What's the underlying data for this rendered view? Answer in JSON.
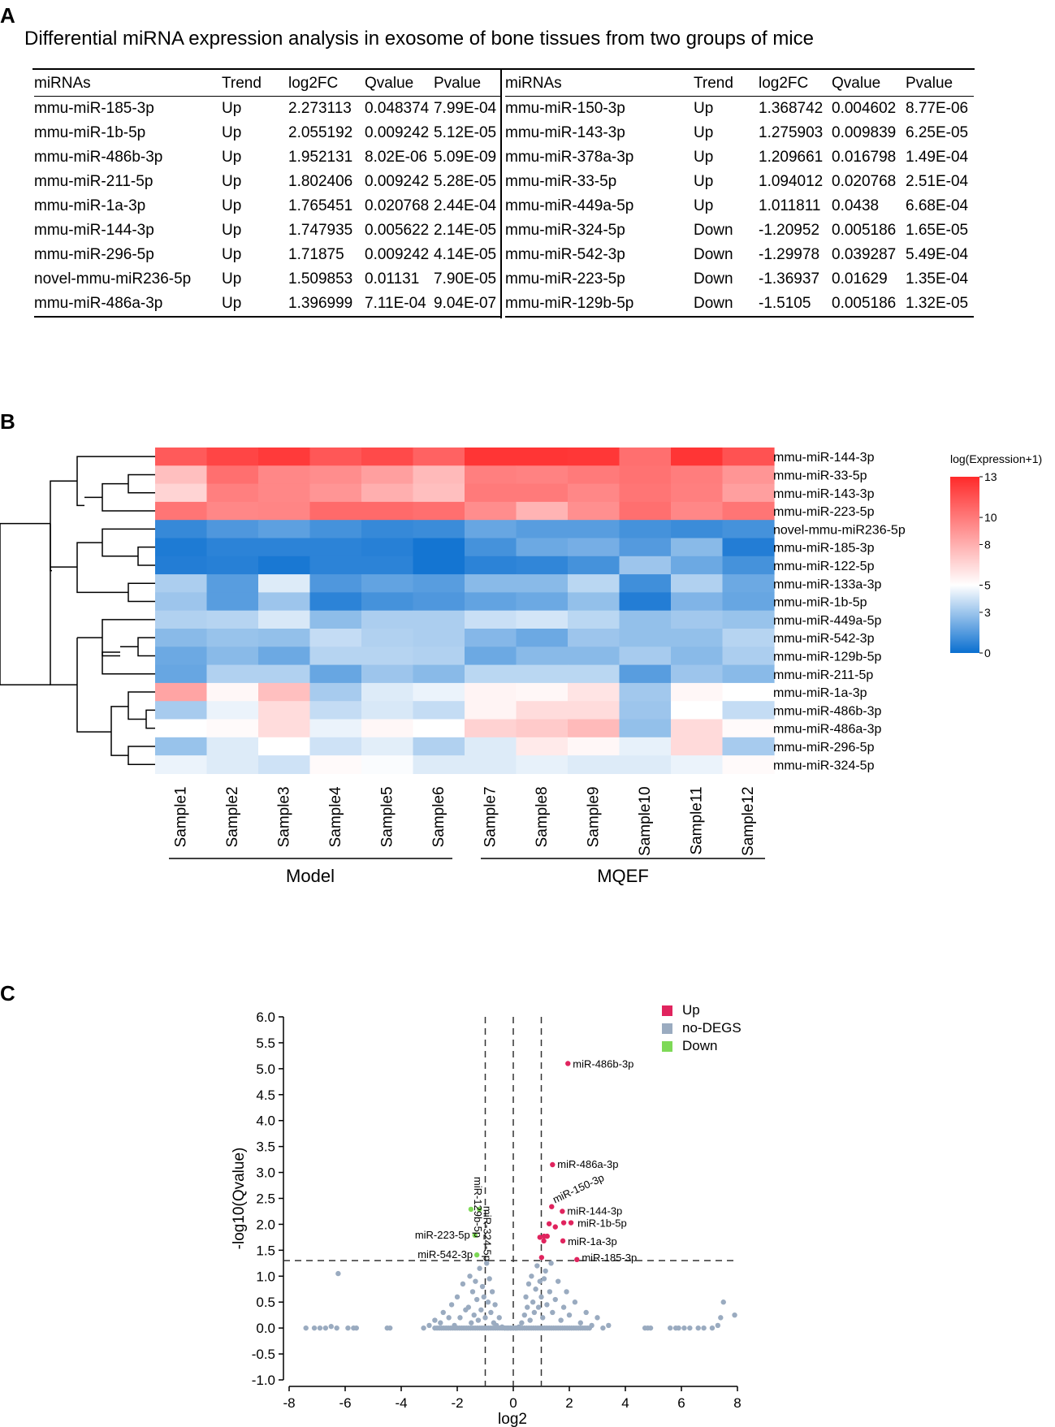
{
  "panel_a": {
    "letter": "A",
    "title": "Differential miRNA expression analysis in exosome of bone tissues from two groups of mice",
    "headers": [
      "miRNAs",
      "Trend",
      "log2FC",
      "Qvalue",
      "Pvalue"
    ],
    "left_rows": [
      [
        "mmu-miR-185-3p",
        "Up",
        "2.273113",
        "0.048374",
        "7.99E-04"
      ],
      [
        "mmu-miR-1b-5p",
        "Up",
        "2.055192",
        "0.009242",
        "5.12E-05"
      ],
      [
        "mmu-miR-486b-3p",
        "Up",
        "1.952131",
        "8.02E-06",
        "5.09E-09"
      ],
      [
        "mmu-miR-211-5p",
        "Up",
        "1.802406",
        "0.009242",
        "5.28E-05"
      ],
      [
        "mmu-miR-1a-3p",
        "Up",
        "1.765451",
        "0.020768",
        "2.44E-04"
      ],
      [
        "mmu-miR-144-3p",
        "Up",
        "1.747935",
        "0.005622",
        "2.14E-05"
      ],
      [
        "mmu-miR-296-5p",
        "Up",
        "1.71875",
        "0.009242",
        "4.14E-05"
      ],
      [
        "novel-mmu-miR236-5p",
        "Up",
        "1.509853",
        "0.01131",
        "7.90E-05"
      ],
      [
        "mmu-miR-486a-3p",
        "Up",
        "1.396999",
        "7.11E-04",
        "9.04E-07"
      ]
    ],
    "right_rows": [
      [
        "mmu-miR-150-3p",
        "Up",
        "1.368742",
        "0.004602",
        "8.77E-06"
      ],
      [
        "mmu-miR-143-3p",
        "Up",
        "1.275903",
        "0.009839",
        "6.25E-05"
      ],
      [
        "mmu-miR-378a-3p",
        "Up",
        "1.209661",
        "0.016798",
        "1.49E-04"
      ],
      [
        "mmu-miR-33-5p",
        "Up",
        "1.094012",
        "0.020768",
        "2.51E-04"
      ],
      [
        "mmu-miR-449a-5p",
        "Up",
        "1.011811",
        "0.0438",
        "6.68E-04"
      ],
      [
        "mmu-miR-324-5p",
        "Down",
        "-1.20952",
        "0.005186",
        "1.65E-05"
      ],
      [
        "mmu-miR-542-3p",
        "Down",
        "-1.29978",
        "0.039287",
        "5.49E-04"
      ],
      [
        "mmu-miR-223-5p",
        "Down",
        "-1.36937",
        "0.01629",
        "1.35E-04"
      ],
      [
        "mmu-miR-129b-5p",
        "Down",
        "-1.5105",
        "0.005186",
        "1.32E-05"
      ]
    ]
  },
  "chart_data": [
    {
      "type": "heatmap",
      "letter": "B",
      "rows": [
        "mmu-miR-144-3p",
        "mmu-miR-33-5p",
        "mmu-miR-143-3p",
        "mmu-miR-223-5p",
        "novel-mmu-miR236-5p",
        "mmu-miR-185-3p",
        "mmu-miR-122-5p",
        "mmu-miR-133a-3p",
        "mmu-miR-1b-5p",
        "mmu-miR-449a-5p",
        "mmu-miR-542-3p",
        "mmu-miR-129b-5p",
        "mmu-miR-211-5p",
        "mmu-miR-1a-3p",
        "mmu-miR-486b-3p",
        "mmu-miR-486a-3p",
        "mmu-miR-296-5p",
        "mmu-miR-324-5p"
      ],
      "columns": [
        "Sample1",
        "Sample2",
        "Sample3",
        "Sample4",
        "Sample5",
        "Sample6",
        "Sample7",
        "Sample8",
        "Sample9",
        "Sample10",
        "Sample11",
        "Sample12"
      ],
      "values": [
        [
          11.2,
          12.0,
          12.4,
          11.3,
          11.8,
          10.9,
          12.6,
          12.6,
          12.5,
          10.4,
          12.6,
          11.5
        ],
        [
          7.4,
          10.4,
          9.5,
          9.3,
          8.6,
          7.6,
          9.8,
          9.7,
          10.0,
          10.3,
          9.9,
          9.0
        ],
        [
          6.6,
          9.8,
          9.5,
          9.0,
          8.0,
          7.4,
          10.0,
          10.0,
          9.5,
          10.2,
          9.8,
          8.6
        ],
        [
          10.2,
          9.5,
          9.6,
          10.6,
          10.6,
          10.4,
          9.3,
          7.8,
          9.2,
          10.4,
          9.5,
          10.2
        ],
        [
          0.9,
          1.4,
          1.7,
          1.2,
          0.9,
          1.0,
          1.9,
          1.6,
          1.6,
          1.2,
          1.0,
          1.2
        ],
        [
          0.4,
          0.7,
          0.7,
          0.7,
          0.6,
          0.2,
          1.2,
          2.0,
          2.2,
          1.5,
          2.6,
          0.5
        ],
        [
          0.5,
          0.6,
          0.3,
          0.7,
          0.7,
          0.2,
          0.7,
          0.8,
          1.2,
          3.0,
          2.0,
          1.2
        ],
        [
          3.3,
          1.6,
          4.3,
          1.4,
          1.8,
          1.6,
          2.6,
          2.6,
          3.6,
          1.1,
          3.4,
          2.0
        ],
        [
          3.0,
          1.6,
          3.0,
          0.7,
          1.2,
          1.4,
          1.8,
          2.0,
          2.8,
          0.5,
          2.4,
          1.9
        ],
        [
          3.4,
          3.5,
          4.2,
          2.7,
          3.3,
          3.3,
          3.9,
          4.1,
          3.6,
          2.8,
          3.1,
          2.9
        ],
        [
          2.6,
          2.9,
          2.8,
          3.8,
          3.4,
          3.3,
          2.5,
          2.0,
          3.0,
          2.8,
          2.8,
          3.5
        ],
        [
          2.0,
          2.6,
          2.0,
          3.5,
          3.5,
          3.4,
          2.0,
          2.6,
          2.6,
          3.2,
          2.6,
          3.3
        ],
        [
          1.9,
          3.4,
          3.4,
          1.9,
          3.0,
          2.6,
          3.6,
          3.6,
          3.6,
          1.6,
          3.0,
          2.6
        ],
        [
          8.4,
          5.3,
          7.4,
          3.2,
          4.3,
          4.6,
          5.4,
          5.3,
          6.0,
          3.1,
          5.3,
          5.0
        ],
        [
          3.2,
          4.6,
          6.3,
          3.8,
          4.2,
          3.8,
          5.4,
          6.3,
          6.3,
          3.0,
          5.0,
          3.8
        ],
        [
          5.0,
          5.2,
          6.3,
          4.6,
          5.3,
          5.0,
          6.7,
          7.0,
          7.6,
          2.8,
          6.4,
          5.2
        ],
        [
          2.9,
          4.3,
          5.0,
          4.0,
          4.4,
          3.4,
          4.3,
          5.8,
          5.3,
          4.5,
          6.4,
          3.2
        ],
        [
          4.6,
          4.3,
          4.0,
          5.2,
          4.9,
          4.3,
          4.3,
          4.5,
          4.3,
          4.3,
          4.6,
          5.2
        ]
      ],
      "colorbar": {
        "title": "log(Expression+1)",
        "ticks": [
          13,
          10,
          8,
          5,
          3,
          0
        ],
        "range": [
          0,
          13
        ],
        "colors": [
          "#0a6fd0",
          "#ffffff",
          "#ff2a2a"
        ]
      },
      "groups": [
        {
          "label": "Model"
        },
        {
          "label": "MQEF"
        }
      ]
    },
    {
      "type": "scatter",
      "letter": "C",
      "title": "",
      "xlabel": "log2",
      "ylabel": "-log10(Qvalue)",
      "xlim": [
        -8,
        8
      ],
      "ylim": [
        -1.0,
        6.0
      ],
      "xticks": [
        "-8",
        "-6",
        "-4",
        "-2",
        "0",
        "2",
        "4",
        "6",
        "8"
      ],
      "yticks": [
        "-1.0",
        "-0.5",
        "0.0",
        "0.5",
        "1.0",
        "1.5",
        "2.0",
        "2.5",
        "3.0",
        "3.5",
        "4.0",
        "4.5",
        "5.0",
        "5.5",
        "6.0"
      ],
      "threshold_lines": {
        "x": [
          -1,
          0,
          1
        ],
        "y": [
          1.3
        ]
      },
      "legend": [
        {
          "label": "Up",
          "color": "#e0245e"
        },
        {
          "label": "no-DEGS",
          "color": "#9aabc0"
        },
        {
          "label": "Down",
          "color": "#7ed957"
        }
      ],
      "up_points": [
        {
          "x": 1.95,
          "y": 5.1,
          "label": "miR-486b-3p"
        },
        {
          "x": 1.4,
          "y": 3.15,
          "label": "miR-486a-3p"
        },
        {
          "x": 1.37,
          "y": 2.34,
          "label": "miR-150-3p"
        },
        {
          "x": 1.75,
          "y": 2.25,
          "label": "miR-144-3p"
        },
        {
          "x": 2.06,
          "y": 2.03,
          "label": "miR-1b-5p"
        },
        {
          "x": 1.77,
          "y": 1.68,
          "label": "miR-1a-3p"
        },
        {
          "x": 2.27,
          "y": 1.32,
          "label": "miR-185-3p"
        },
        {
          "x": 1.8,
          "y": 2.03,
          "label": ""
        },
        {
          "x": 1.5,
          "y": 1.95,
          "label": ""
        },
        {
          "x": 1.28,
          "y": 2.01,
          "label": ""
        },
        {
          "x": 1.09,
          "y": 1.68,
          "label": ""
        },
        {
          "x": 1.01,
          "y": 1.36,
          "label": ""
        },
        {
          "x": 1.21,
          "y": 1.77,
          "label": ""
        },
        {
          "x": 0.95,
          "y": 1.75,
          "label": ""
        },
        {
          "x": 1.1,
          "y": 1.77,
          "label": ""
        }
      ],
      "down_points": [
        {
          "x": -1.21,
          "y": 2.29,
          "label": "miR-324-5p"
        },
        {
          "x": -1.51,
          "y": 2.29,
          "label": "miR-129b-5p"
        },
        {
          "x": -1.37,
          "y": 1.79,
          "label": "miR-223-5p"
        },
        {
          "x": -1.3,
          "y": 1.41,
          "label": "miR-542-3p"
        }
      ],
      "nodeg_points": [
        [
          -7.4,
          0.0
        ],
        [
          -7.1,
          0.0
        ],
        [
          -6.9,
          0.0
        ],
        [
          -6.7,
          0.0
        ],
        [
          -6.5,
          0.03
        ],
        [
          -6.3,
          0.0
        ],
        [
          -6.25,
          1.05
        ],
        [
          -5.9,
          0.0
        ],
        [
          -5.7,
          0.0
        ],
        [
          -5.6,
          0.0
        ],
        [
          -4.5,
          0.0
        ],
        [
          -4.4,
          0.0
        ],
        [
          -3.2,
          0.0
        ],
        [
          -3.0,
          0.05
        ],
        [
          -2.8,
          0.15
        ],
        [
          -2.6,
          0.1
        ],
        [
          -2.5,
          0.3
        ],
        [
          -2.3,
          0.2
        ],
        [
          -2.2,
          0.45
        ],
        [
          -2.1,
          0.05
        ],
        [
          -2.0,
          0.6
        ],
        [
          -1.9,
          0.2
        ],
        [
          -1.8,
          0.85
        ],
        [
          -1.7,
          0.35
        ],
        [
          -1.6,
          0.4
        ],
        [
          -1.55,
          1.0
        ],
        [
          -1.5,
          0.1
        ],
        [
          -1.45,
          0.7
        ],
        [
          -1.4,
          0.25
        ],
        [
          -1.35,
          0.9
        ],
        [
          -1.3,
          0.55
        ],
        [
          -1.25,
          0.15
        ],
        [
          -1.2,
          1.15
        ],
        [
          -1.15,
          0.35
        ],
        [
          -1.1,
          0.8
        ],
        [
          -1.05,
          0.6
        ],
        [
          -1.0,
          0.2
        ],
        [
          -0.95,
          1.25
        ],
        [
          -0.9,
          0.5
        ],
        [
          -0.85,
          0.95
        ],
        [
          -0.8,
          0.3
        ],
        [
          -0.75,
          0.7
        ],
        [
          -0.7,
          0.1
        ],
        [
          -0.65,
          0.45
        ],
        [
          -0.6,
          0.05
        ],
        [
          -0.5,
          0.2
        ],
        [
          -0.4,
          0.02
        ],
        [
          -0.3,
          0.0
        ],
        [
          -0.2,
          0.0
        ],
        [
          -0.1,
          0.0
        ],
        [
          0.0,
          0.0
        ],
        [
          0.1,
          0.0
        ],
        [
          0.2,
          0.02
        ],
        [
          0.3,
          0.1
        ],
        [
          0.4,
          0.25
        ],
        [
          0.45,
          0.6
        ],
        [
          0.5,
          0.4
        ],
        [
          0.55,
          0.85
        ],
        [
          0.6,
          0.15
        ],
        [
          0.65,
          1.0
        ],
        [
          0.7,
          0.5
        ],
        [
          0.75,
          0.3
        ],
        [
          0.8,
          0.75
        ],
        [
          0.85,
          1.2
        ],
        [
          0.9,
          0.4
        ],
        [
          0.95,
          0.9
        ],
        [
          1.0,
          0.6
        ],
        [
          1.05,
          0.2
        ],
        [
          1.1,
          0.95
        ],
        [
          1.15,
          1.1
        ],
        [
          1.2,
          0.45
        ],
        [
          1.3,
          0.7
        ],
        [
          1.35,
          1.25
        ],
        [
          1.4,
          0.3
        ],
        [
          1.5,
          0.55
        ],
        [
          1.6,
          0.9
        ],
        [
          1.7,
          0.15
        ],
        [
          1.8,
          0.4
        ],
        [
          1.9,
          0.7
        ],
        [
          2.0,
          0.25
        ],
        [
          2.2,
          0.5
        ],
        [
          2.4,
          0.1
        ],
        [
          2.6,
          0.3
        ],
        [
          2.8,
          0.05
        ],
        [
          3.0,
          0.2
        ],
        [
          3.2,
          0.0
        ],
        [
          3.4,
          0.05
        ],
        [
          4.7,
          0.0
        ],
        [
          4.8,
          0.0
        ],
        [
          4.9,
          0.0
        ],
        [
          5.6,
          0.0
        ],
        [
          5.8,
          0.0
        ],
        [
          5.9,
          0.0
        ],
        [
          6.1,
          0.0
        ],
        [
          6.3,
          0.0
        ],
        [
          6.6,
          0.0
        ],
        [
          6.8,
          0.0
        ],
        [
          7.1,
          0.0
        ],
        [
          7.3,
          0.05
        ],
        [
          7.4,
          0.2
        ],
        [
          7.5,
          0.5
        ],
        [
          7.9,
          0.25
        ]
      ]
    }
  ]
}
